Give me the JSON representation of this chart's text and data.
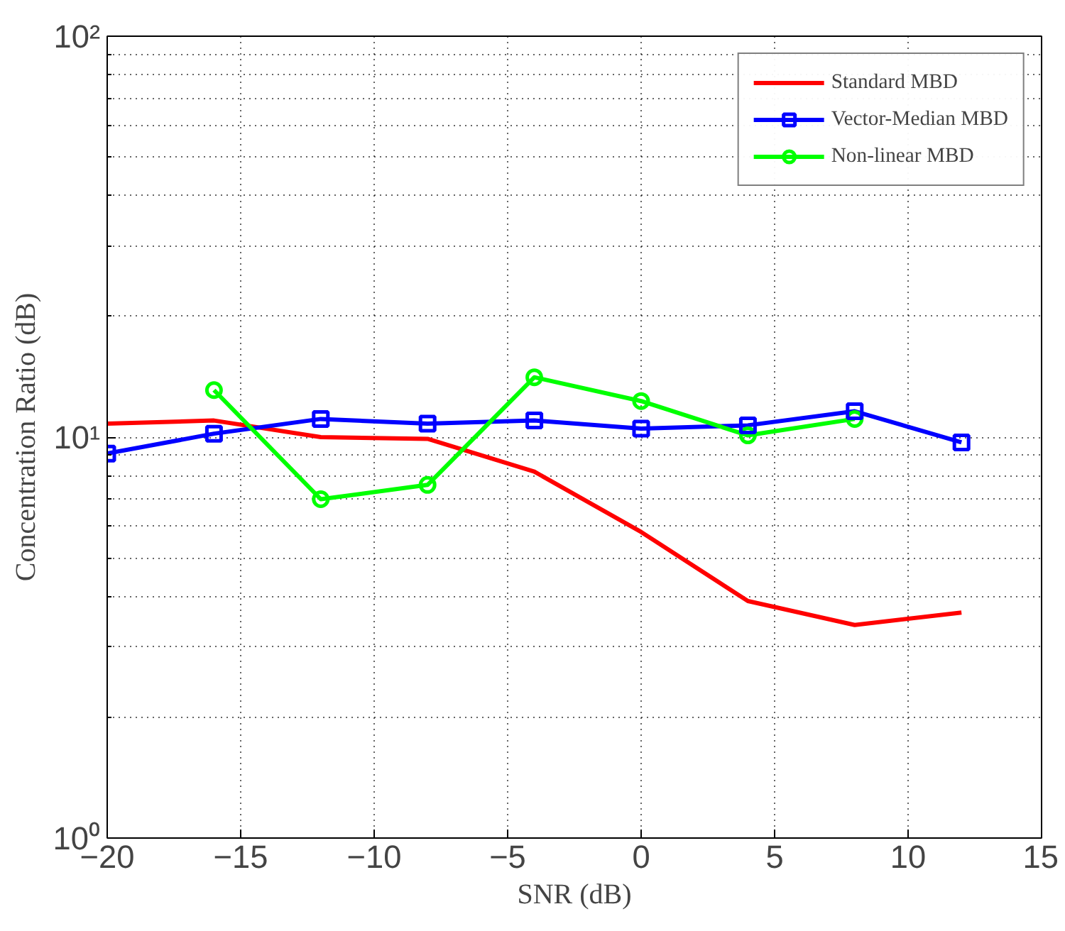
{
  "chart_data": {
    "type": "line",
    "xlabel": "SNR (dB)",
    "ylabel": "Concentration Ratio (dB)",
    "log": "y",
    "grid": true,
    "legend": "top right",
    "line_style": "solid",
    "x": [
      -20,
      -16,
      -12,
      -8,
      -4,
      0,
      4,
      8,
      12
    ],
    "xlim": [
      -20,
      15
    ],
    "xticks": [
      {
        "value": -20,
        "label": "−20"
      },
      {
        "value": -15,
        "label": "−15"
      },
      {
        "value": -10,
        "label": "−10"
      },
      {
        "value": -5,
        "label": "−5"
      },
      0,
      5,
      10,
      15
    ],
    "ylim": [
      1,
      100
    ],
    "yticks": [
      {
        "value": 1,
        "label": "10⁰"
      },
      {
        "value": 10,
        "label": "10¹"
      },
      {
        "value": 100,
        "label": "10²"
      }
    ],
    "series": [
      {
        "name": "Standard MBD",
        "color": "#ff0000",
        "marker": "none",
        "values": [
          10.8,
          11.0,
          10.0,
          9.9,
          8.2,
          5.8,
          3.9,
          3.4,
          3.65
        ]
      },
      {
        "name": "Vector-Median MBD",
        "color": "#0000ff",
        "marker": "square",
        "values": [
          9.1,
          10.2,
          11.1,
          10.8,
          11.0,
          10.5,
          10.7,
          11.6,
          9.7
        ]
      },
      {
        "name": "Non-linear MBD",
        "color": "#00ff00",
        "marker": "circle",
        "values": [
          null,
          13.1,
          7.0,
          7.6,
          14.1,
          12.3,
          10.1,
          11.1,
          null
        ]
      }
    ]
  }
}
